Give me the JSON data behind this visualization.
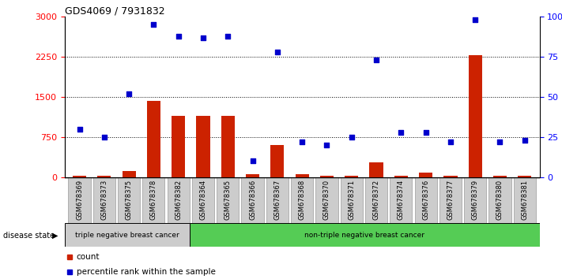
{
  "title": "GDS4069 / 7931832",
  "samples": [
    "GSM678369",
    "GSM678373",
    "GSM678375",
    "GSM678378",
    "GSM678382",
    "GSM678364",
    "GSM678365",
    "GSM678366",
    "GSM678367",
    "GSM678368",
    "GSM678370",
    "GSM678371",
    "GSM678372",
    "GSM678374",
    "GSM678376",
    "GSM678377",
    "GSM678379",
    "GSM678380",
    "GSM678381"
  ],
  "counts": [
    30,
    20,
    120,
    1420,
    1150,
    1150,
    1150,
    50,
    600,
    50,
    30,
    30,
    280,
    30,
    80,
    20,
    2280,
    20,
    20
  ],
  "percentiles": [
    30,
    25,
    52,
    95,
    88,
    87,
    88,
    10,
    78,
    22,
    20,
    25,
    73,
    28,
    28,
    22,
    98,
    22,
    23
  ],
  "group1_count": 5,
  "group1_label": "triple negative breast cancer",
  "group2_label": "non-triple negative breast cancer",
  "ylim_left": [
    0,
    3000
  ],
  "ylim_right": [
    0,
    100
  ],
  "yticks_left": [
    0,
    750,
    1500,
    2250,
    3000
  ],
  "yticks_right": [
    0,
    25,
    50,
    75,
    100
  ],
  "bar_color": "#cc2200",
  "dot_color": "#0000cc",
  "group1_bg": "#cccccc",
  "group2_bg": "#55cc55",
  "xtick_bg": "#cccccc",
  "legend_count_label": "count",
  "legend_pct_label": "percentile rank within the sample"
}
